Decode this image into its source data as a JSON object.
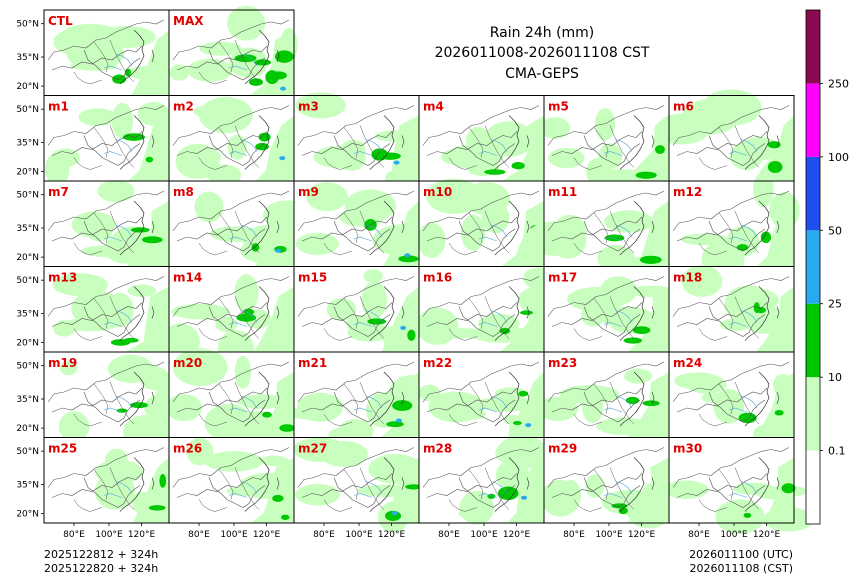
{
  "title": {
    "line1": "Rain 24h (mm)",
    "line2": "2026011008-2026011108 CST",
    "line3": "CMA-GEPS"
  },
  "panels_top": [
    "CTL",
    "MAX"
  ],
  "members": [
    "m1",
    "m2",
    "m3",
    "m4",
    "m5",
    "m6",
    "m7",
    "m8",
    "m9",
    "m10",
    "m11",
    "m12",
    "m13",
    "m14",
    "m15",
    "m16",
    "m17",
    "m18",
    "m19",
    "m20",
    "m21",
    "m22",
    "m23",
    "m24",
    "m25",
    "m26",
    "m27",
    "m28",
    "m29",
    "m30"
  ],
  "lat_labels": [
    "50°N",
    "35°N",
    "20°N"
  ],
  "lon_labels": [
    "80°E",
    "100°E",
    "120°E"
  ],
  "colorbar": {
    "levels": [
      "0.1",
      "10",
      "25",
      "50",
      "100",
      "250"
    ],
    "colors": [
      "#ffffff",
      "#c8ffbe",
      "#00c800",
      "#28aaf0",
      "#1e50f0",
      "#ff00ff",
      "#8c0a50"
    ]
  },
  "footer": {
    "left1": "2025122812 + 324h",
    "left2": "2025122820 + 324h",
    "right1": "2026011100 (UTC)",
    "right2": "2026011108 (CST)"
  },
  "colors": {
    "light_rain": "#c8ffbe",
    "moderate_rain": "#00c800",
    "heavy_rain": "#28aaf0",
    "storm": "#1e50f0",
    "label_red": "#e00000"
  }
}
